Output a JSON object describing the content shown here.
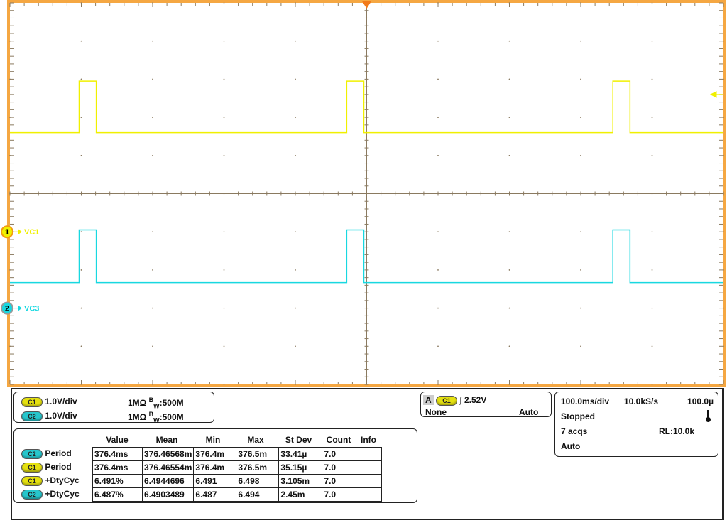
{
  "colors": {
    "ch1": "#f0f000",
    "ch2": "#18d8e0",
    "frame": "#f5a742",
    "trigger_marker": "#f27a1a",
    "grid": "#8a7a60"
  },
  "graticule": {
    "h_divs": 10,
    "v_divs": 10
  },
  "channels": [
    {
      "id": "1",
      "label": "VC1",
      "ground_div": -1,
      "low_v": 2.6,
      "high_v": 3.95
    },
    {
      "id": "2",
      "label": "VC3",
      "ground_div": -3,
      "low_v": 0.67,
      "high_v": 2.05
    }
  ],
  "waveform": {
    "time_per_div_ms": 100,
    "pulses_ms": [
      [
        -403,
        -379
      ],
      [
        -28,
        -4
      ],
      [
        345,
        369
      ]
    ]
  },
  "trigger_level_div": 1.6,
  "vertical": [
    {
      "chip": "C1",
      "scale": "1.0V/div",
      "impedance": "1MΩ",
      "bw_prefix": "B",
      "bw_sub": "W",
      "bw": ":500M"
    },
    {
      "chip": "C2",
      "scale": "1.0V/div",
      "impedance": "1MΩ",
      "bw_prefix": "B",
      "bw_sub": "W",
      "bw": ":500M"
    }
  ],
  "trigger": {
    "source_letter": "A",
    "chip": "C1",
    "slope_icon": "rising-edge",
    "level": "2.52V",
    "coupling": "None",
    "mode": "Auto"
  },
  "horizontal": {
    "timebase": "100.0ms/div",
    "sample_rate": "10.0kS/s",
    "position": "100.0µ",
    "state": "Stopped",
    "acqs": "7 acqs",
    "record_length": "RL:10.0k",
    "mode": "Auto",
    "icon": "thermometer-icon"
  },
  "measurements": {
    "headers": [
      "Value",
      "Mean",
      "Min",
      "Max",
      "St Dev",
      "Count",
      "Info"
    ],
    "rows": [
      {
        "chip": "C2",
        "name": "Period",
        "cells": [
          "376.4ms",
          "376.46568m",
          "376.4m",
          "376.5m",
          "33.41µ",
          "7.0",
          ""
        ]
      },
      {
        "chip": "C1",
        "name": "Period",
        "cells": [
          "376.4ms",
          "376.46554m",
          "376.4m",
          "376.5m",
          "35.15µ",
          "7.0",
          ""
        ]
      },
      {
        "chip": "C1",
        "name": "+DtyCyc",
        "cells": [
          "6.491%",
          "6.4944696",
          "6.491",
          "6.498",
          "3.105m",
          "7.0",
          ""
        ]
      },
      {
        "chip": "C2",
        "name": "+DtyCyc",
        "cells": [
          "6.487%",
          "6.4903489",
          "6.487",
          "6.494",
          "2.45m",
          "7.0",
          ""
        ]
      }
    ]
  }
}
